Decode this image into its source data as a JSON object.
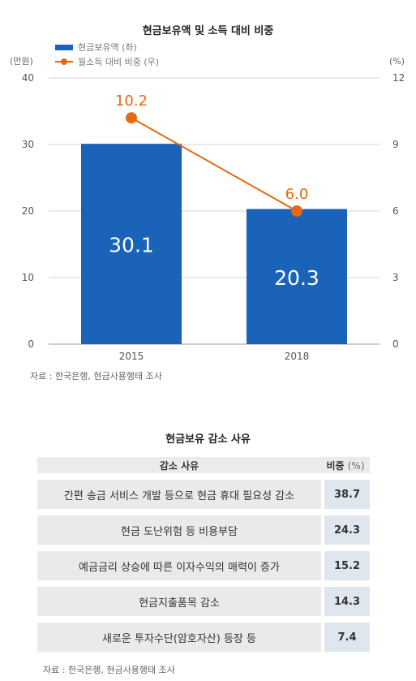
{
  "chart_data": {
    "type": "bar+line",
    "title": "현금보유액 및 소득 대비 비중",
    "categories": [
      "2015",
      "2018"
    ],
    "series": [
      {
        "name": "현금보유액 (좌)",
        "type": "bar",
        "axis": "left",
        "values": [
          30.1,
          20.3
        ],
        "color": "#1a63b8"
      },
      {
        "name": "월소득 대비 비중 (우)",
        "type": "line",
        "axis": "right",
        "values": [
          10.2,
          6.0
        ],
        "labels": [
          "10.2",
          "6.0"
        ],
        "color": "#e8680f"
      }
    ],
    "bar_labels": [
      "30.1",
      "20.3"
    ],
    "left_axis": {
      "unit": "(만원)",
      "ylim": [
        0,
        40
      ],
      "ticks": [
        "0",
        "10",
        "20",
        "30",
        "40"
      ]
    },
    "right_axis": {
      "unit": "(%)",
      "ylim": [
        0,
        12
      ],
      "ticks": [
        "0",
        "3",
        "6",
        "9",
        "12"
      ]
    },
    "grid": true,
    "legend_position": "top-left"
  },
  "source_top": "자료 : 한국은행, 현금사용행태 조사",
  "table": {
    "title": "현금보유 감소 사유",
    "header": {
      "reason": "감소 사유",
      "share": "비중",
      "unit": "(%)"
    },
    "rows": [
      {
        "reason": "간편 송금 서비스 개발 등으로 현금 휴대 필요성 감소",
        "share": "38.7"
      },
      {
        "reason": "현금 도난위험 등 비용부담",
        "share": "24.3"
      },
      {
        "reason": "예금금리 상승에 따른 이자수익의 매력이 증가",
        "share": "15.2"
      },
      {
        "reason": "현금지출품목 감소",
        "share": "14.3"
      },
      {
        "reason": "새로운 투자수단(암호자산) 등장 등",
        "share": "7.4"
      }
    ]
  },
  "source_bottom": "자료 : 한국은행, 현금사용행태 조사"
}
